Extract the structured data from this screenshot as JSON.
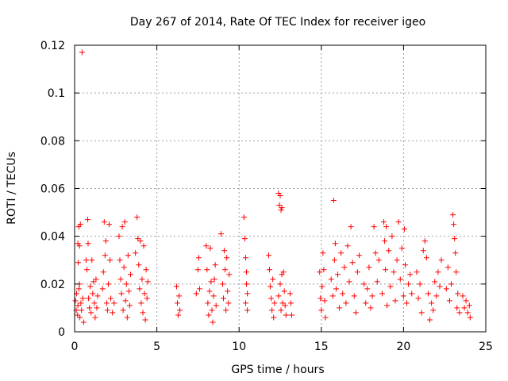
{
  "chart_data": {
    "type": "scatter",
    "title": "Day 267 of 2014, Rate Of TEC Index for receiver igeo",
    "xlabel": "GPS time / hours",
    "ylabel": "ROTI / TECUs",
    "xlim": [
      0,
      25
    ],
    "ylim": [
      0,
      0.12
    ],
    "grid": true,
    "marker": "+",
    "color": "#ff0000",
    "x_ticks": [
      0,
      5,
      10,
      15,
      20,
      25
    ],
    "x_tick_labels": [
      "0",
      "5",
      "10",
      "15",
      "20",
      "25"
    ],
    "y_ticks": [
      0,
      0.02,
      0.04,
      0.06,
      0.08,
      0.1,
      0.12
    ],
    "y_tick_labels": [
      "0",
      "0.02",
      "0.04",
      "0.06",
      "0.08",
      "0.1",
      "0.12"
    ],
    "series": [
      {
        "name": "ROTI",
        "points": [
          [
            0.45,
            0.117
          ],
          [
            0.2,
            0.037
          ],
          [
            0.25,
            0.044
          ],
          [
            0.3,
            0.036
          ],
          [
            0.35,
            0.045
          ],
          [
            0.22,
            0.029
          ],
          [
            0.3,
            0.02
          ],
          [
            0.05,
            0.013
          ],
          [
            0.1,
            0.009
          ],
          [
            0.12,
            0.016
          ],
          [
            0.18,
            0.007
          ],
          [
            0.2,
            0.011
          ],
          [
            0.26,
            0.018
          ],
          [
            0.32,
            0.006
          ],
          [
            0.38,
            0.012
          ],
          [
            0.42,
            0.009
          ],
          [
            0.5,
            0.014
          ],
          [
            0.55,
            0.004
          ],
          [
            0.7,
            0.03
          ],
          [
            0.75,
            0.026
          ],
          [
            0.8,
            0.047
          ],
          [
            0.82,
            0.037
          ],
          [
            0.85,
            0.014
          ],
          [
            0.9,
            0.01
          ],
          [
            0.95,
            0.019
          ],
          [
            1.0,
            0.008
          ],
          [
            1.05,
            0.03
          ],
          [
            1.1,
            0.016
          ],
          [
            1.15,
            0.021
          ],
          [
            1.2,
            0.012
          ],
          [
            1.25,
            0.006
          ],
          [
            1.3,
            0.022
          ],
          [
            1.35,
            0.01
          ],
          [
            1.4,
            0.015
          ],
          [
            1.7,
            0.018
          ],
          [
            1.75,
            0.025
          ],
          [
            1.8,
            0.046
          ],
          [
            1.85,
            0.032
          ],
          [
            1.9,
            0.038
          ],
          [
            1.95,
            0.012
          ],
          [
            2.0,
            0.009
          ],
          [
            2.05,
            0.02
          ],
          [
            2.1,
            0.045
          ],
          [
            2.15,
            0.03
          ],
          [
            2.2,
            0.014
          ],
          [
            2.3,
            0.008
          ],
          [
            2.4,
            0.012
          ],
          [
            2.7,
            0.04
          ],
          [
            2.75,
            0.03
          ],
          [
            2.8,
            0.022
          ],
          [
            2.85,
            0.016
          ],
          [
            2.9,
            0.044
          ],
          [
            2.95,
            0.009
          ],
          [
            3.0,
            0.027
          ],
          [
            3.05,
            0.046
          ],
          [
            3.1,
            0.013
          ],
          [
            3.15,
            0.02
          ],
          [
            3.2,
            0.006
          ],
          [
            3.25,
            0.032
          ],
          [
            3.3,
            0.017
          ],
          [
            3.35,
            0.011
          ],
          [
            3.4,
            0.024
          ],
          [
            3.7,
            0.033
          ],
          [
            3.8,
            0.048
          ],
          [
            3.85,
            0.039
          ],
          [
            3.9,
            0.028
          ],
          [
            3.95,
            0.018
          ],
          [
            4.0,
            0.038
          ],
          [
            4.05,
            0.012
          ],
          [
            4.1,
            0.022
          ],
          [
            4.15,
            0.008
          ],
          [
            4.2,
            0.036
          ],
          [
            4.25,
            0.016
          ],
          [
            4.3,
            0.005
          ],
          [
            4.35,
            0.026
          ],
          [
            4.4,
            0.014
          ],
          [
            4.45,
            0.021
          ],
          [
            6.2,
            0.019
          ],
          [
            6.25,
            0.012
          ],
          [
            6.3,
            0.007
          ],
          [
            6.35,
            0.015
          ],
          [
            6.4,
            0.009
          ],
          [
            7.4,
            0.016
          ],
          [
            7.5,
            0.026
          ],
          [
            7.55,
            0.031
          ],
          [
            7.6,
            0.018
          ],
          [
            8.0,
            0.036
          ],
          [
            8.05,
            0.026
          ],
          [
            8.1,
            0.012
          ],
          [
            8.15,
            0.007
          ],
          [
            8.2,
            0.017
          ],
          [
            8.25,
            0.035
          ],
          [
            8.3,
            0.021
          ],
          [
            8.35,
            0.009
          ],
          [
            8.4,
            0.004
          ],
          [
            8.45,
            0.015
          ],
          [
            8.5,
            0.022
          ],
          [
            8.55,
            0.028
          ],
          [
            8.6,
            0.011
          ],
          [
            8.9,
            0.041
          ],
          [
            9.0,
            0.02
          ],
          [
            9.05,
            0.014
          ],
          [
            9.1,
            0.034
          ],
          [
            9.15,
            0.026
          ],
          [
            9.2,
            0.009
          ],
          [
            9.25,
            0.031
          ],
          [
            9.3,
            0.017
          ],
          [
            9.35,
            0.012
          ],
          [
            9.4,
            0.024
          ],
          [
            10.3,
            0.048
          ],
          [
            10.35,
            0.039
          ],
          [
            10.4,
            0.031
          ],
          [
            10.45,
            0.025
          ],
          [
            10.5,
            0.016
          ],
          [
            10.4,
            0.012
          ],
          [
            10.5,
            0.009
          ],
          [
            10.45,
            0.02
          ],
          [
            11.8,
            0.032
          ],
          [
            11.85,
            0.026
          ],
          [
            11.9,
            0.019
          ],
          [
            11.95,
            0.014
          ],
          [
            12.0,
            0.009
          ],
          [
            12.05,
            0.022
          ],
          [
            12.1,
            0.006
          ],
          [
            12.15,
            0.012
          ],
          [
            12.4,
            0.058
          ],
          [
            12.45,
            0.053
          ],
          [
            12.5,
            0.057
          ],
          [
            12.55,
            0.051
          ],
          [
            12.6,
            0.052
          ],
          [
            12.4,
            0.015
          ],
          [
            12.5,
            0.02
          ],
          [
            12.55,
            0.009
          ],
          [
            12.6,
            0.024
          ],
          [
            12.65,
            0.012
          ],
          [
            12.7,
            0.025
          ],
          [
            12.75,
            0.017
          ],
          [
            12.8,
            0.011
          ],
          [
            12.85,
            0.007
          ],
          [
            13.1,
            0.016
          ],
          [
            13.15,
            0.012
          ],
          [
            13.2,
            0.007
          ],
          [
            14.9,
            0.025
          ],
          [
            14.95,
            0.014
          ],
          [
            15.0,
            0.009
          ],
          [
            15.05,
            0.019
          ],
          [
            15.1,
            0.033
          ],
          [
            15.15,
            0.026
          ],
          [
            15.2,
            0.013
          ],
          [
            15.25,
            0.006
          ],
          [
            15.6,
            0.022
          ],
          [
            15.7,
            0.015
          ],
          [
            15.75,
            0.055
          ],
          [
            15.8,
            0.03
          ],
          [
            15.85,
            0.037
          ],
          [
            15.9,
            0.018
          ],
          [
            16.0,
            0.024
          ],
          [
            16.1,
            0.01
          ],
          [
            16.2,
            0.033
          ],
          [
            16.3,
            0.016
          ],
          [
            16.4,
            0.027
          ],
          [
            16.5,
            0.012
          ],
          [
            16.6,
            0.036
          ],
          [
            16.7,
            0.021
          ],
          [
            16.8,
            0.044
          ],
          [
            16.9,
            0.029
          ],
          [
            17.0,
            0.015
          ],
          [
            17.1,
            0.008
          ],
          [
            17.2,
            0.025
          ],
          [
            17.3,
            0.032
          ],
          [
            17.6,
            0.02
          ],
          [
            17.7,
            0.012
          ],
          [
            17.8,
            0.018
          ],
          [
            17.9,
            0.027
          ],
          [
            18.0,
            0.01
          ],
          [
            18.1,
            0.015
          ],
          [
            18.2,
            0.044
          ],
          [
            18.3,
            0.033
          ],
          [
            18.4,
            0.021
          ],
          [
            18.5,
            0.03
          ],
          [
            18.7,
            0.016
          ],
          [
            18.8,
            0.046
          ],
          [
            18.85,
            0.038
          ],
          [
            18.9,
            0.026
          ],
          [
            18.95,
            0.044
          ],
          [
            19.0,
            0.011
          ],
          [
            19.1,
            0.034
          ],
          [
            19.2,
            0.019
          ],
          [
            19.3,
            0.04
          ],
          [
            19.4,
            0.025
          ],
          [
            19.5,
            0.013
          ],
          [
            19.6,
            0.03
          ],
          [
            19.7,
            0.046
          ],
          [
            19.8,
            0.022
          ],
          [
            19.9,
            0.035
          ],
          [
            20.0,
            0.015
          ],
          [
            20.05,
            0.043
          ],
          [
            20.1,
            0.028
          ],
          [
            20.2,
            0.012
          ],
          [
            20.3,
            0.02
          ],
          [
            20.4,
            0.024
          ],
          [
            20.5,
            0.016
          ],
          [
            20.8,
            0.025
          ],
          [
            20.9,
            0.014
          ],
          [
            21.0,
            0.02
          ],
          [
            21.1,
            0.008
          ],
          [
            21.2,
            0.034
          ],
          [
            21.3,
            0.038
          ],
          [
            21.4,
            0.031
          ],
          [
            21.5,
            0.016
          ],
          [
            21.6,
            0.005
          ],
          [
            21.7,
            0.012
          ],
          [
            21.8,
            0.009
          ],
          [
            21.9,
            0.021
          ],
          [
            22.0,
            0.015
          ],
          [
            22.1,
            0.025
          ],
          [
            22.2,
            0.019
          ],
          [
            22.3,
            0.03
          ],
          [
            22.6,
            0.018
          ],
          [
            22.7,
            0.027
          ],
          [
            22.8,
            0.013
          ],
          [
            22.9,
            0.02
          ],
          [
            23.0,
            0.049
          ],
          [
            23.05,
            0.045
          ],
          [
            23.1,
            0.039
          ],
          [
            23.15,
            0.033
          ],
          [
            23.2,
            0.025
          ],
          [
            23.25,
            0.01
          ],
          [
            23.3,
            0.016
          ],
          [
            23.4,
            0.008
          ],
          [
            23.6,
            0.015
          ],
          [
            23.7,
            0.01
          ],
          [
            23.8,
            0.013
          ],
          [
            23.9,
            0.008
          ],
          [
            24.0,
            0.011
          ],
          [
            24.05,
            0.006
          ]
        ]
      }
    ]
  }
}
